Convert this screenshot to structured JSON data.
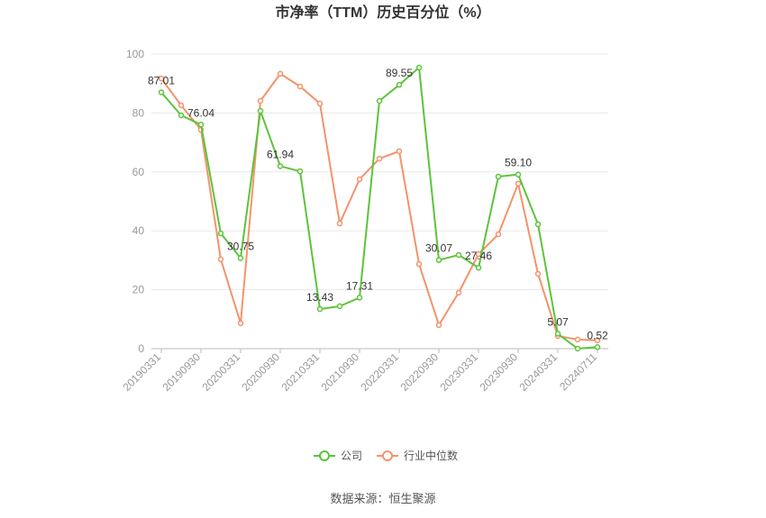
{
  "chart_data": {
    "type": "line",
    "title": "市净率（TTM）历史百分位（%）",
    "categories": [
      "20190331",
      null,
      "20190930",
      null,
      "20200331",
      null,
      "20200930",
      null,
      "20210331",
      null,
      "20210930",
      null,
      "20220331",
      null,
      "20220930",
      null,
      "20230331",
      null,
      "20230930",
      null,
      "20240331",
      null,
      "20240711"
    ],
    "series": [
      {
        "name": "公司",
        "color": "#5cc43a",
        "values": [
          87.01,
          79.2,
          76.04,
          39.1,
          30.75,
          80.7,
          61.94,
          60.2,
          13.43,
          14.4,
          17.31,
          84.1,
          89.55,
          95.4,
          30.07,
          31.8,
          27.46,
          58.4,
          59.1,
          42.2,
          5.07,
          0,
          0.52
        ],
        "value_labels": [
          "87.01",
          null,
          "76.04",
          null,
          "30.75",
          null,
          "61.94",
          null,
          "13.43",
          null,
          "17.31",
          null,
          "89.55",
          null,
          "30.07",
          null,
          "27.46",
          null,
          "59.10",
          null,
          "5.07",
          null,
          "0.52"
        ]
      },
      {
        "name": "行业中位数",
        "color": "#f4936b",
        "values": [
          91.7,
          82.6,
          74.3,
          30.3,
          8.6,
          84.1,
          93.3,
          89.0,
          83.2,
          42.5,
          57.5,
          64.5,
          67.0,
          28.7,
          8.0,
          19.0,
          32.1,
          38.8,
          56.0,
          25.4,
          4.3,
          3.1,
          2.8
        ]
      }
    ],
    "ylim": [
      0,
      100
    ],
    "yticks": [
      0,
      20,
      40,
      60,
      80,
      100
    ],
    "grid": true,
    "legend": "bottom",
    "source": "数据来源：恒生聚源"
  }
}
